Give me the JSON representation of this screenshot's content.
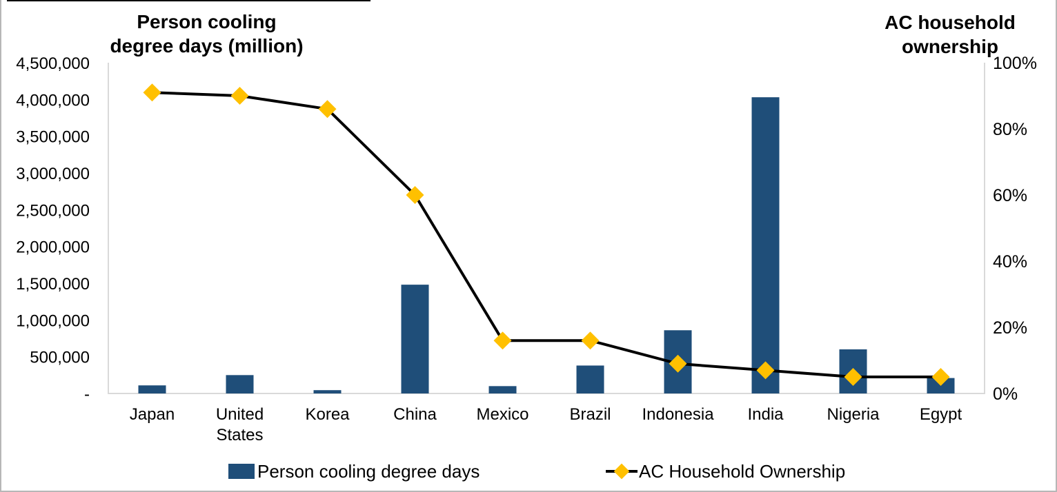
{
  "chart_data": {
    "type": "combo-bar-line",
    "categories": [
      "Japan",
      "United States",
      "Korea",
      "China",
      "Mexico",
      "Brazil",
      "Indonesia",
      "India",
      "Nigeria",
      "Egypt"
    ],
    "bar_series": {
      "name": "Person cooling degree days",
      "color": "#1F4E79",
      "axis": "left",
      "values": [
        110000,
        250000,
        45000,
        1480000,
        100000,
        380000,
        860000,
        4030000,
        600000,
        210000
      ]
    },
    "line_series": {
      "name": "AC Household Ownership",
      "line_color": "#000000",
      "marker_color": "#FFC000",
      "axis": "right",
      "values_percent": [
        91,
        90,
        86,
        60,
        16,
        16,
        9,
        7,
        5,
        5
      ]
    },
    "left_axis": {
      "title_lines": [
        "Person cooling",
        "degree days (million)"
      ],
      "min": 0,
      "max": 4500000,
      "step": 500000,
      "tick_labels": [
        "4,500,000",
        "4,000,000",
        "3,500,000",
        "3,000,000",
        "2,500,000",
        "2,000,000",
        "1,500,000",
        "1,000,000",
        "500,000",
        "-"
      ]
    },
    "right_axis": {
      "title_lines": [
        "AC household",
        "ownership"
      ],
      "min": 0,
      "max": 100,
      "step": 20,
      "tick_labels": [
        "100%",
        "80%",
        "60%",
        "40%",
        "20%",
        "0%"
      ]
    },
    "legend": [
      {
        "label": "Person cooling degree days",
        "swatch": "bar",
        "color": "#1F4E79"
      },
      {
        "label": "AC Household Ownership",
        "swatch": "line-diamond",
        "line_color": "#000000",
        "marker_color": "#FFC000"
      }
    ],
    "grid": false,
    "axis_line_color": "#D9D9D9"
  }
}
